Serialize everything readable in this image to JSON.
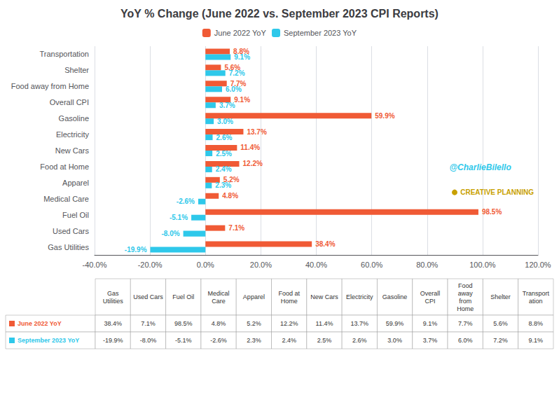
{
  "chart_data": [
    {
      "type": "bar",
      "title": "YoY % Change (June 2022 vs. September 2023 CPI Reports)",
      "orientation": "horizontal",
      "categories": [
        "Transportation",
        "Shelter",
        "Food away from Home",
        "Overall CPI",
        "Gasoline",
        "Electricity",
        "New Cars",
        "Food at Home",
        "Apparel",
        "Medical Care",
        "Fuel Oil",
        "Used Cars",
        "Gas Utilities"
      ],
      "series": [
        {
          "name": "June 2022 YoY",
          "color": "#f05a35",
          "values": [
            8.8,
            5.6,
            7.7,
            9.1,
            59.9,
            13.7,
            11.4,
            12.2,
            5.2,
            4.8,
            98.5,
            7.1,
            38.4
          ],
          "value_labels": [
            "8.8%",
            "5.6%",
            "7.7%",
            "9.1%",
            "59.9%",
            "13.7%",
            "11.4%",
            "12.2%",
            "5.2%",
            "4.8%",
            "98.5%",
            "7.1%",
            "38.4%"
          ]
        },
        {
          "name": "September 2023 YoY",
          "color": "#2ec8ea",
          "values": [
            9.1,
            7.2,
            6.0,
            3.7,
            3.0,
            2.6,
            2.5,
            2.4,
            2.3,
            -2.6,
            -5.1,
            -8.0,
            -19.9
          ],
          "value_labels": [
            "9.1%",
            "7.2%",
            "6.0%",
            "3.7%",
            "3.0%",
            "2.6%",
            "2.5%",
            "2.4%",
            "2.3%",
            "-2.6%",
            "-5.1%",
            "-8.0%",
            "-19.9%"
          ]
        }
      ],
      "xlim": [
        -40,
        120
      ],
      "xticks": [
        {
          "value": -40,
          "label": "-40.0%"
        },
        {
          "value": -20,
          "label": "-20.0%"
        },
        {
          "value": 0,
          "label": "0.0%"
        },
        {
          "value": 20,
          "label": "20.0%"
        },
        {
          "value": 40,
          "label": "40.0%"
        },
        {
          "value": 60,
          "label": "60.0%"
        },
        {
          "value": 80,
          "label": "80.0%"
        },
        {
          "value": 100,
          "label": "100.0%"
        },
        {
          "value": 120,
          "label": "120.0%"
        }
      ],
      "grid": true,
      "data_labels": true,
      "legend": "top",
      "annotations": [
        {
          "text": "@CharlieBilello",
          "color": "#2ec8ea"
        },
        {
          "text": "CREATIVE PLANNING",
          "color": "#c8a000"
        }
      ]
    },
    {
      "type": "table",
      "columns": [
        "Gas\nUtilities",
        "Used Cars",
        "Fuel Oil",
        "Medical\nCare",
        "Apparel",
        "Food at\nHome",
        "New Cars",
        "Electricity",
        "Gasoline",
        "Overall\nCPI",
        "Food\naway\nfrom\nHome",
        "Shelter",
        "Transport\nation"
      ],
      "series": [
        {
          "name": "June 2022 YoY",
          "color": "#f05a35",
          "values": [
            38.4,
            7.1,
            98.5,
            4.8,
            5.2,
            12.2,
            11.4,
            13.7,
            59.9,
            9.1,
            7.7,
            5.6,
            8.8
          ],
          "value_labels": [
            "38.4%",
            "7.1%",
            "98.5%",
            "4.8%",
            "5.2%",
            "12.2%",
            "11.4%",
            "13.7%",
            "59.9%",
            "9.1%",
            "7.7%",
            "5.6%",
            "8.8%"
          ]
        },
        {
          "name": "September 2023 YoY",
          "color": "#2ec8ea",
          "values": [
            -19.9,
            -8.0,
            -5.1,
            -2.6,
            2.3,
            2.4,
            2.5,
            2.6,
            3.0,
            3.7,
            6.0,
            7.2,
            9.1
          ],
          "value_labels": [
            "-19.9%",
            "-8.0%",
            "-5.1%",
            "-2.6%",
            "2.3%",
            "2.4%",
            "2.5%",
            "2.6%",
            "3.0%",
            "3.7%",
            "6.0%",
            "7.2%",
            "9.1%"
          ]
        }
      ]
    }
  ]
}
